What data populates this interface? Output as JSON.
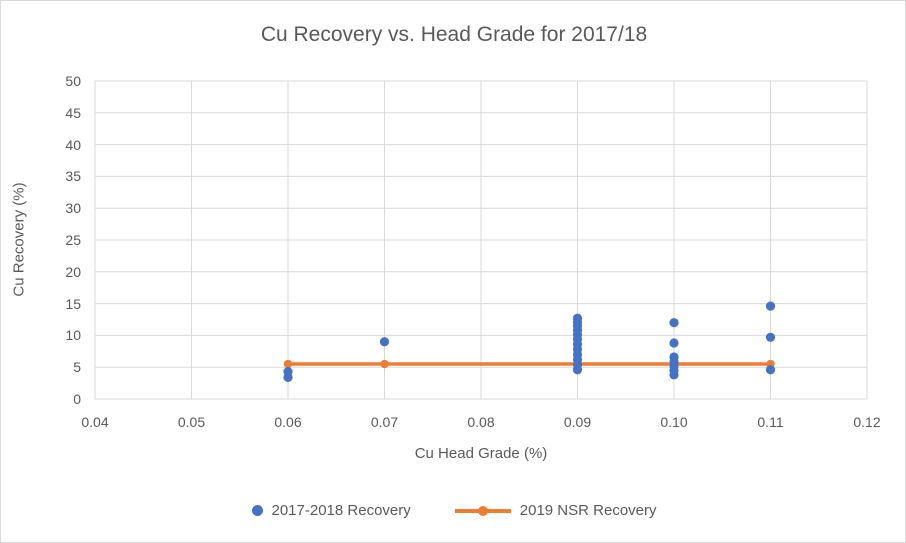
{
  "chart_data": {
    "type": "scatter",
    "title": "Cu Recovery vs. Head Grade for 2017/18",
    "xlabel": "Cu Head Grade (%)",
    "ylabel": "Cu Recovery (%)",
    "xlim": [
      0.04,
      0.12
    ],
    "ylim": [
      0,
      50
    ],
    "x_ticks": [
      "0.04",
      "0.05",
      "0.06",
      "0.07",
      "0.08",
      "0.09",
      "0.10",
      "0.11",
      "0.12"
    ],
    "y_ticks": [
      "0",
      "5",
      "10",
      "15",
      "20",
      "25",
      "30",
      "35",
      "40",
      "45",
      "50"
    ],
    "grid": true,
    "gridline_color": "#d9d9d9",
    "legend_position": "bottom",
    "series": [
      {
        "name": "2019 NSR Recovery",
        "type": "line",
        "color": "#ED7D31",
        "marker": "circle",
        "points": [
          [
            0.06,
            5.5
          ],
          [
            0.07,
            5.5
          ],
          [
            0.09,
            5.5
          ],
          [
            0.1,
            5.5
          ],
          [
            0.11,
            5.5
          ]
        ]
      },
      {
        "name": "2017-2018 Recovery",
        "type": "scatter",
        "color": "#4472C4",
        "marker": "circle",
        "points": [
          [
            0.06,
            4.3
          ],
          [
            0.06,
            3.4
          ],
          [
            0.07,
            9.0
          ],
          [
            0.09,
            12.7
          ],
          [
            0.09,
            12.1
          ],
          [
            0.09,
            11.5
          ],
          [
            0.09,
            10.8
          ],
          [
            0.09,
            10.1
          ],
          [
            0.09,
            9.4
          ],
          [
            0.09,
            8.6
          ],
          [
            0.09,
            7.8
          ],
          [
            0.09,
            7.0
          ],
          [
            0.09,
            6.2
          ],
          [
            0.09,
            5.4
          ],
          [
            0.09,
            4.6
          ],
          [
            0.1,
            12.0
          ],
          [
            0.1,
            8.8
          ],
          [
            0.1,
            6.6
          ],
          [
            0.1,
            5.9
          ],
          [
            0.1,
            5.2
          ],
          [
            0.1,
            4.5
          ],
          [
            0.1,
            3.8
          ],
          [
            0.11,
            14.6
          ],
          [
            0.11,
            9.7
          ],
          [
            0.11,
            4.6
          ]
        ]
      }
    ],
    "legend": [
      {
        "label": "2017-2018 Recovery",
        "color": "#4472C4",
        "style": "dot"
      },
      {
        "label": "2019 NSR Recovery",
        "color": "#ED7D31",
        "style": "line-dot"
      }
    ],
    "text_color": "#595959"
  }
}
